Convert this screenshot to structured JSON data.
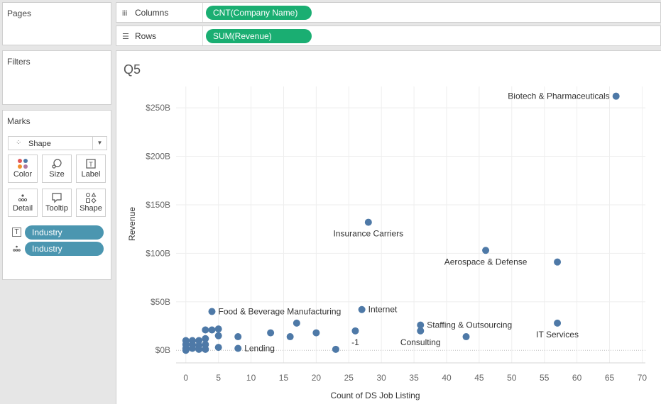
{
  "left_panel": {
    "pages_title": "Pages",
    "filters_title": "Filters",
    "marks": {
      "title": "Marks",
      "mark_type": "Shape",
      "buttons": [
        {
          "label": "Color",
          "icon": "color-icon"
        },
        {
          "label": "Size",
          "icon": "size-icon"
        },
        {
          "label": "Label",
          "icon": "label-icon"
        },
        {
          "label": "Detail",
          "icon": "detail-icon"
        },
        {
          "label": "Tooltip",
          "icon": "tooltip-icon"
        },
        {
          "label": "Shape",
          "icon": "shape-icon"
        }
      ],
      "fields": [
        {
          "icon": "label-icon",
          "name": "Industry"
        },
        {
          "icon": "detail-icon",
          "name": "Industry"
        }
      ]
    }
  },
  "shelves": {
    "columns_label": "Columns",
    "columns_pill": "CNT(Company Name)",
    "rows_label": "Rows",
    "rows_pill": "SUM(Revenue)"
  },
  "sheet_title": "Q5",
  "colors": {
    "mark": "#4e79a7",
    "pill_green": "#1aae72",
    "pill_teal": "#4b96b0"
  },
  "chart_data": {
    "type": "scatter",
    "title": "Q5",
    "xlabel": "Count of DS Job Listing",
    "ylabel": "Revenue",
    "xlim": [
      -1.5,
      70.5
    ],
    "ylim": [
      -13,
      272
    ],
    "x_ticks": [
      0,
      5,
      10,
      15,
      20,
      25,
      30,
      35,
      40,
      45,
      50,
      55,
      60,
      65,
      70
    ],
    "x_tick_labels": [
      "0",
      "5",
      "10",
      "15",
      "20",
      "25",
      "30",
      "35",
      "40",
      "45",
      "50",
      "55",
      "60",
      "65",
      "70"
    ],
    "y_ticks": [
      0,
      50,
      100,
      150,
      200,
      250
    ],
    "y_tick_labels": [
      "$0B",
      "$50B",
      "$100B",
      "$150B",
      "$200B",
      "$250B"
    ],
    "points": [
      {
        "x": 66,
        "y": 262,
        "label": "Biotech & Pharmaceuticals",
        "label_pos": "left"
      },
      {
        "x": 28,
        "y": 132,
        "label": "Insurance Carriers",
        "label_pos": "below"
      },
      {
        "x": 46,
        "y": 103,
        "label": "Aerospace & Defense",
        "label_pos": "below"
      },
      {
        "x": 57,
        "y": 91,
        "label": "",
        "label_pos": ""
      },
      {
        "x": 4,
        "y": 40,
        "label": "Food & Beverage Manufacturing",
        "label_pos": "right"
      },
      {
        "x": 27,
        "y": 42,
        "label": "Internet",
        "label_pos": "right"
      },
      {
        "x": 36,
        "y": 26,
        "label": "Staffing & Outsourcing",
        "label_pos": "right"
      },
      {
        "x": 36,
        "y": 20,
        "label": "Consulting",
        "label_pos": "below"
      },
      {
        "x": 57,
        "y": 28,
        "label": "IT Services",
        "label_pos": "below"
      },
      {
        "x": 26,
        "y": 20,
        "label": "-1",
        "label_pos": "below"
      },
      {
        "x": 8,
        "y": 2,
        "label": "Lending",
        "label_pos": "right"
      },
      {
        "x": 23,
        "y": 1,
        "label": "",
        "label_pos": ""
      },
      {
        "x": 43,
        "y": 14,
        "label": "",
        "label_pos": ""
      },
      {
        "x": 20,
        "y": 18,
        "label": "",
        "label_pos": ""
      },
      {
        "x": 17,
        "y": 28,
        "label": "",
        "label_pos": ""
      },
      {
        "x": 16,
        "y": 14,
        "label": "",
        "label_pos": ""
      },
      {
        "x": 13,
        "y": 18,
        "label": "",
        "label_pos": ""
      },
      {
        "x": 8,
        "y": 14,
        "label": "",
        "label_pos": ""
      },
      {
        "x": 5,
        "y": 22,
        "label": "",
        "label_pos": ""
      },
      {
        "x": 5,
        "y": 15,
        "label": "",
        "label_pos": ""
      },
      {
        "x": 5,
        "y": 3,
        "label": "",
        "label_pos": ""
      },
      {
        "x": 4,
        "y": 21,
        "label": "",
        "label_pos": ""
      },
      {
        "x": 3,
        "y": 21,
        "label": "",
        "label_pos": ""
      },
      {
        "x": 3,
        "y": 12,
        "label": "",
        "label_pos": ""
      },
      {
        "x": 3,
        "y": 6,
        "label": "",
        "label_pos": ""
      },
      {
        "x": 3,
        "y": 1,
        "label": "",
        "label_pos": ""
      },
      {
        "x": 2,
        "y": 10,
        "label": "",
        "label_pos": ""
      },
      {
        "x": 2,
        "y": 5,
        "label": "",
        "label_pos": ""
      },
      {
        "x": 2,
        "y": 1,
        "label": "",
        "label_pos": ""
      },
      {
        "x": 1,
        "y": 10,
        "label": "",
        "label_pos": ""
      },
      {
        "x": 1,
        "y": 6,
        "label": "",
        "label_pos": ""
      },
      {
        "x": 1,
        "y": 2,
        "label": "",
        "label_pos": ""
      },
      {
        "x": 0,
        "y": 10,
        "label": "",
        "label_pos": ""
      },
      {
        "x": 0,
        "y": 6,
        "label": "",
        "label_pos": ""
      },
      {
        "x": 0,
        "y": 2,
        "label": "",
        "label_pos": ""
      },
      {
        "x": 0,
        "y": 0,
        "label": "",
        "label_pos": ""
      }
    ]
  }
}
